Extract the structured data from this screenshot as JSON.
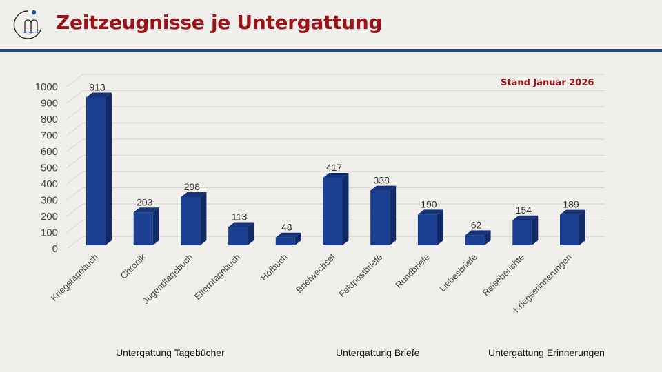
{
  "header": {
    "title": "Zeitzeugnisse je Untergattung",
    "logo_icon": "book-reader-logo-icon"
  },
  "colors": {
    "title": "#9b1318",
    "rule": "#1f4596",
    "bar_front": "#1a3f91",
    "bar_top": "#16337a",
    "bar_side": "#122a66",
    "grid": "#d8d7d3",
    "background": "#f0efec"
  },
  "annotation": "Stand Januar 2026",
  "groups": [
    {
      "label": "Untergattung Tagebücher"
    },
    {
      "label": "Untergattung Briefe"
    },
    {
      "label": "Untergattung Erinnerungen"
    }
  ],
  "chart_data": {
    "type": "bar",
    "style": "3d-column",
    "title": "Zeitzeugnisse je Untergattung",
    "categories": [
      "Kriegstagebuch",
      "Chronik",
      "Jugendtagebuch",
      "Elterntagebuch",
      "Hofbuch",
      "Briefwechsel",
      "Feldpostbriefe",
      "Rundbriefe",
      "Liebesbriefe",
      "Reiseberichte",
      "Kriegserinnerungen"
    ],
    "values": [
      913,
      203,
      298,
      113,
      48,
      417,
      338,
      190,
      62,
      154,
      189
    ],
    "data_labels": [
      "913",
      "203",
      "298",
      "113",
      "48",
      "417",
      "338",
      "190",
      "62",
      "154",
      "189"
    ],
    "yticks": [
      0,
      100,
      200,
      300,
      400,
      500,
      600,
      700,
      800,
      900,
      1000
    ],
    "ytick_labels": [
      "0",
      "100",
      "200",
      "300",
      "400",
      "500",
      "600",
      "700",
      "800",
      "900",
      "1000"
    ],
    "ylim": [
      0,
      1000
    ],
    "xlabel": "",
    "ylabel": "",
    "grid": true,
    "legend": "none"
  }
}
